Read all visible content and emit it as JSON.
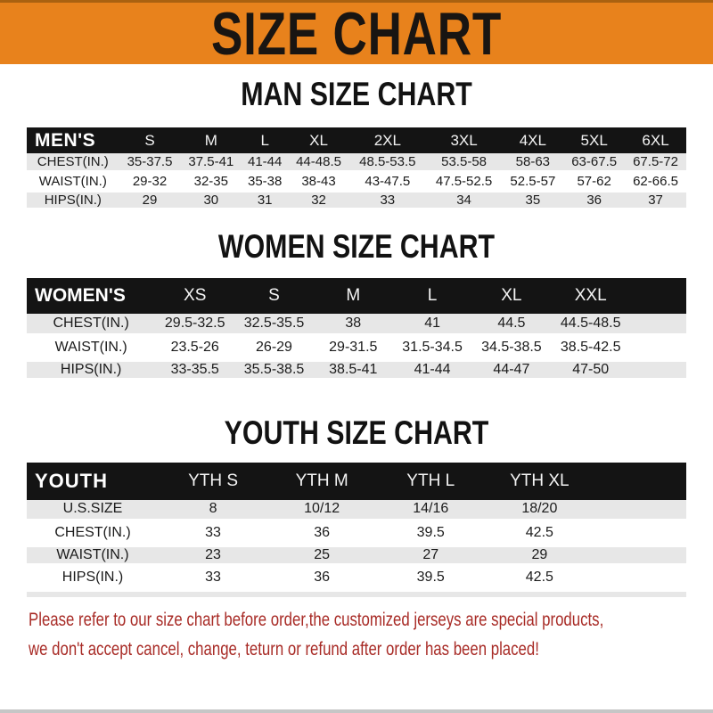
{
  "banner": {
    "title": "SIZE CHART"
  },
  "chart_data": [
    {
      "type": "table",
      "title": "MAN SIZE CHART",
      "header_label": "MEN'S",
      "columns": [
        "S",
        "M",
        "L",
        "XL",
        "2XL",
        "3XL",
        "4XL",
        "5XL",
        "6XL"
      ],
      "rows": [
        {
          "label": "CHEST(IN.)",
          "values": [
            "35-37.5",
            "37.5-41",
            "41-44",
            "44-48.5",
            "48.5-53.5",
            "53.5-58",
            "58-63",
            "63-67.5",
            "67.5-72"
          ]
        },
        {
          "label": "WAIST(IN.)",
          "values": [
            "29-32",
            "32-35",
            "35-38",
            "38-43",
            "43-47.5",
            "47.5-52.5",
            "52.5-57",
            "57-62",
            "62-66.5"
          ]
        },
        {
          "label": "HIPS(IN.)",
          "values": [
            "29",
            "30",
            "31",
            "32",
            "33",
            "34",
            "35",
            "36",
            "37"
          ]
        }
      ]
    },
    {
      "type": "table",
      "title": "WOMEN SIZE CHART",
      "header_label": "WOMEN'S",
      "columns": [
        "XS",
        "S",
        "M",
        "L",
        "XL",
        "XXL"
      ],
      "rows": [
        {
          "label": "CHEST(IN.)",
          "values": [
            "29.5-32.5",
            "32.5-35.5",
            "38",
            "41",
            "44.5",
            "44.5-48.5"
          ]
        },
        {
          "label": "WAIST(IN.)",
          "values": [
            "23.5-26",
            "26-29",
            "29-31.5",
            "31.5-34.5",
            "34.5-38.5",
            "38.5-42.5"
          ]
        },
        {
          "label": "HIPS(IN.)",
          "values": [
            "33-35.5",
            "35.5-38.5",
            "38.5-41",
            "41-44",
            "44-47",
            "47-50"
          ]
        }
      ]
    },
    {
      "type": "table",
      "title": "YOUTH SIZE CHART",
      "header_label": "YOUTH",
      "columns": [
        "YTH S",
        "YTH M",
        "YTH L",
        "YTH XL"
      ],
      "rows": [
        {
          "label": "U.S.SIZE",
          "values": [
            "8",
            "10/12",
            "14/16",
            "18/20"
          ]
        },
        {
          "label": "CHEST(IN.)",
          "values": [
            "33",
            "36",
            "39.5",
            "42.5"
          ]
        },
        {
          "label": "WAIST(IN.)",
          "values": [
            "23",
            "25",
            "27",
            "29"
          ]
        },
        {
          "label": "HIPS(IN.)",
          "values": [
            "33",
            "36",
            "39.5",
            "42.5"
          ]
        }
      ]
    }
  ],
  "note": {
    "line1": "Please refer to our size chart before order,the customized jerseys are special products,",
    "line2": "we don't accept cancel, change, teturn or refund after order has been placed!"
  },
  "colors": {
    "banner_bg": "#e8821c",
    "banner_text": "#191512",
    "header_bar_bg": "#141414",
    "header_bar_text": "#ffffff",
    "row_stripe": "#e7e7e7",
    "note_text": "#a82b26"
  }
}
